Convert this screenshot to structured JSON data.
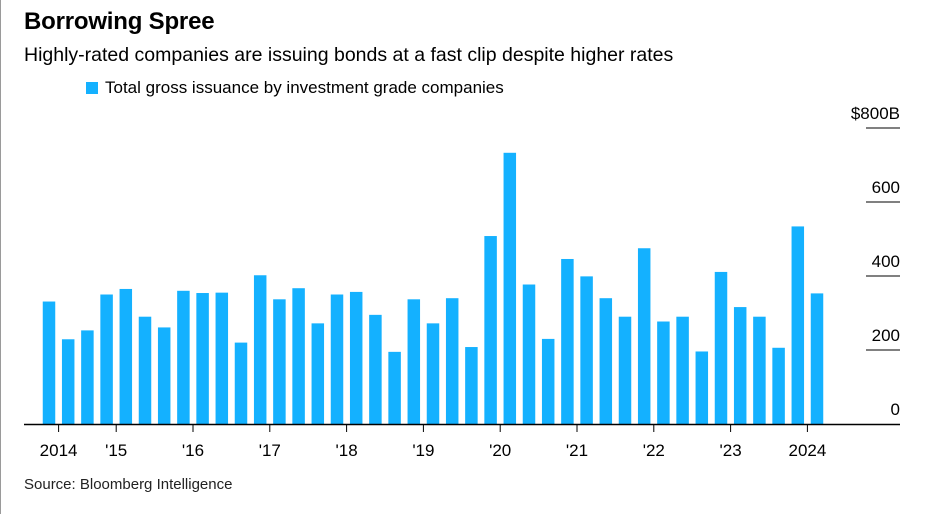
{
  "title": "Borrowing Spree",
  "subtitle": "Highly-rated companies are issuing bonds at a fast clip despite higher rates",
  "source": "Source: Bloomberg Intelligence",
  "colors": {
    "bar": "#14b1ff",
    "axis": "#000000"
  },
  "chart_data": {
    "type": "bar",
    "series": [
      {
        "name": "Total gross issuance by investment grade companies",
        "values": [
          331,
          229,
          253,
          350,
          365,
          290,
          261,
          360,
          354,
          355,
          220,
          402,
          337,
          367,
          272,
          350,
          357,
          295,
          195,
          337,
          272,
          340,
          208,
          508,
          733,
          377,
          230,
          446,
          399,
          340,
          290,
          475,
          277,
          290,
          196,
          411,
          316,
          290,
          206,
          534,
          353
        ]
      }
    ],
    "x_tick_labels": [
      {
        "label": "2014",
        "index": 0.5
      },
      {
        "label": "'15",
        "index": 3.5
      },
      {
        "label": "'16",
        "index": 7.5
      },
      {
        "label": "'17",
        "index": 11.5
      },
      {
        "label": "'18",
        "index": 15.5
      },
      {
        "label": "'19",
        "index": 19.5
      },
      {
        "label": "'20",
        "index": 23.5
      },
      {
        "label": "'21",
        "index": 27.5
      },
      {
        "label": "'22",
        "index": 31.5
      },
      {
        "label": "'23",
        "index": 35.5
      },
      {
        "label": "2024",
        "index": 39.5
      }
    ],
    "y_ticks": [
      {
        "value": 0,
        "label": "0"
      },
      {
        "value": 200,
        "label": "200"
      },
      {
        "value": 400,
        "label": "400"
      },
      {
        "value": 600,
        "label": "600"
      },
      {
        "value": 800,
        "label": "$800B"
      }
    ],
    "ylim": [
      0,
      800
    ],
    "grid": false,
    "legend_position": "top-left",
    "y_axis_side": "right"
  }
}
